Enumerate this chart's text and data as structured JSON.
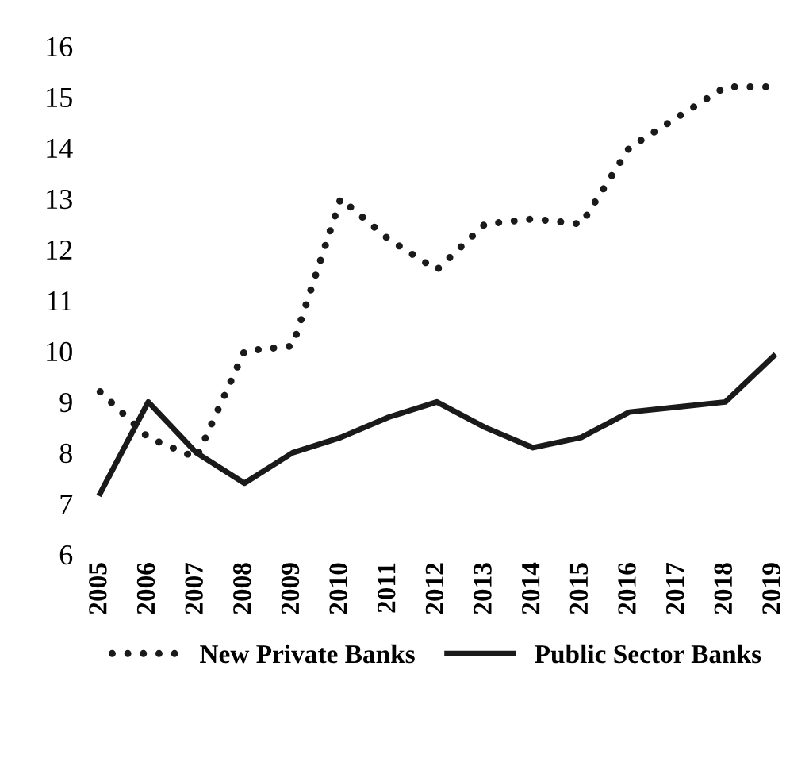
{
  "chart_data": {
    "type": "line",
    "categories": [
      "2005",
      "2006",
      "2007",
      "2008",
      "2009",
      "2010",
      "2011",
      "2012",
      "2013",
      "2014",
      "2015",
      "2016",
      "2017",
      "2018",
      "2019"
    ],
    "series": [
      {
        "name": "New Private Banks",
        "color": "#1a1a1a",
        "line_style": "dotted",
        "values": [
          9.2,
          8.3,
          7.9,
          10.0,
          10.1,
          13.0,
          12.2,
          11.6,
          12.5,
          12.6,
          12.5,
          14.0,
          14.6,
          15.2,
          15.2
        ]
      },
      {
        "name": "Public Sector Banks",
        "color": "#1a1a1a",
        "line_style": "solid",
        "values": [
          7.2,
          9.0,
          8.0,
          7.4,
          8.0,
          8.3,
          8.7,
          9.0,
          8.5,
          8.1,
          8.3,
          8.8,
          8.9,
          9.0,
          9.9
        ]
      }
    ],
    "ylim": [
      6,
      16
    ],
    "yticks": [
      6,
      7,
      8,
      9,
      10,
      11,
      12,
      13,
      14,
      15,
      16
    ],
    "grid": false,
    "legend": "bottom",
    "marker": "none"
  }
}
